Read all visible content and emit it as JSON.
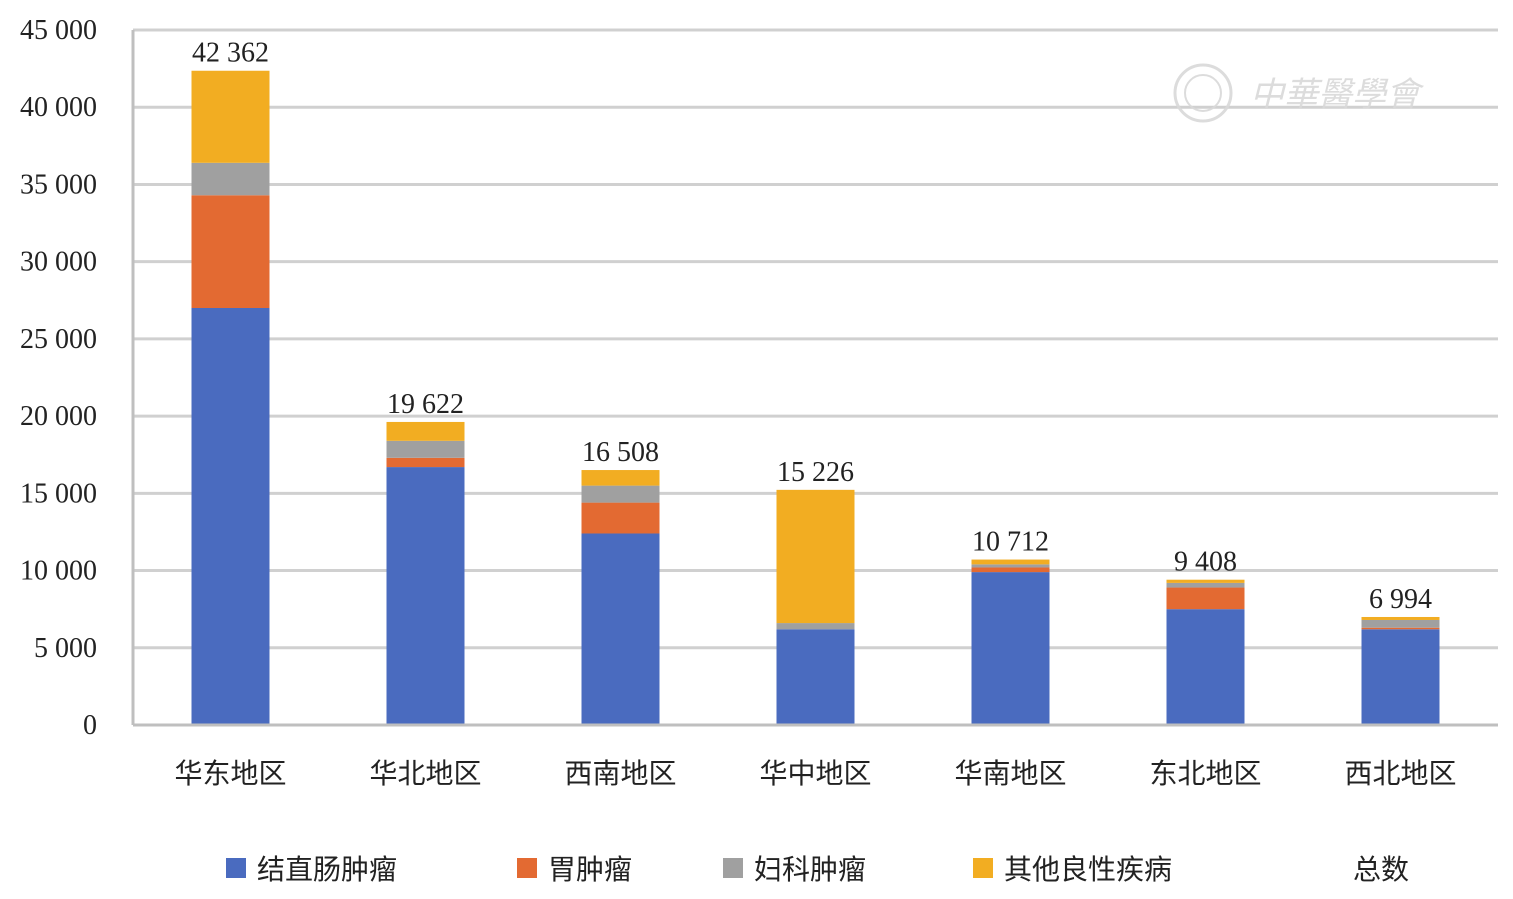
{
  "chart_data": {
    "type": "bar",
    "stacked": true,
    "title": "",
    "xlabel": "",
    "ylabel": "",
    "ylim": [
      0,
      45000
    ],
    "yticks": [
      0,
      5000,
      10000,
      15000,
      20000,
      25000,
      30000,
      35000,
      40000,
      45000
    ],
    "ytick_labels": [
      "0",
      "5 000",
      "10 000",
      "15 000",
      "20 000",
      "25 000",
      "30 000",
      "35 000",
      "40 000",
      "45 000"
    ],
    "categories": [
      "华东地区",
      "华北地区",
      "西南地区",
      "华中地区",
      "华南地区",
      "东北地区",
      "西北地区"
    ],
    "series": [
      {
        "name": "结直肠肿瘤",
        "color": "#4a6bbf",
        "values": [
          27000,
          16700,
          12400,
          6200,
          9900,
          7500,
          6200
        ]
      },
      {
        "name": "胃肿瘤",
        "color": "#e36a32",
        "values": [
          7300,
          600,
          2000,
          0,
          300,
          1400,
          100
        ]
      },
      {
        "name": "妇科肿瘤",
        "color": "#a0a0a0",
        "values": [
          2100,
          1100,
          1100,
          400,
          200,
          300,
          500
        ]
      },
      {
        "name": "其他良性疾病",
        "color": "#f2ad22",
        "values": [
          5962,
          1222,
          1008,
          8626,
          312,
          208,
          194
        ]
      }
    ],
    "totals_name": "总数",
    "totals": [
      42362,
      19622,
      16508,
      15226,
      10712,
      9408,
      6994
    ],
    "total_labels": [
      "42 362",
      "19 622",
      "16 508",
      "15 226",
      "10 712",
      "9 408",
      "6 994"
    ],
    "grid": true,
    "legend_position": "bottom"
  },
  "watermark": {
    "text": "中華醫學會",
    "icon": "society-seal-icon"
  }
}
